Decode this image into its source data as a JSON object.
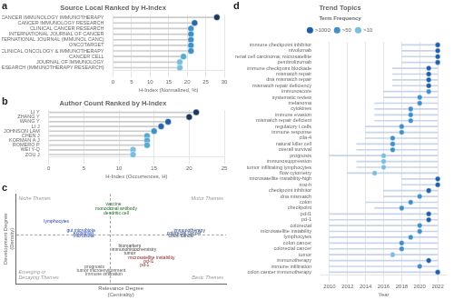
{
  "chart_data": [
    {
      "panel_label": "a",
      "type": "lollipop",
      "orientation": "horizontal",
      "title": "Source Local Ranked by H-Index",
      "x_label": "H-Index (Normalized, %)",
      "categories": [
        "CANCER IMMUNOLOGY IMMUNOTHERAPY",
        "CANCER IMMUNOLOGY RESEARCH",
        "CLINICAL CANCER RESEARCH",
        "INTERNATIONAL JOURNAL OF CANCER",
        "INTERNATIONAL JOURNAL (IMMUNOL CANC)",
        "ONCOTARGET",
        "JOURNAL OF CLINICAL ONCOLOGY & IMMUNOTHERAPY",
        "CANCER CELL",
        "JOURNAL OF IMMUNOLOGY",
        "CANCER RESEARCH (IMMUNOTHERAPY RESEARCH)"
      ],
      "values": [
        28,
        22,
        21,
        21,
        21,
        21,
        21,
        19,
        18,
        18
      ],
      "colors": [
        "#1a3a5c",
        "#2868a8",
        "#4090c8",
        "#4090c8",
        "#4090c8",
        "#4090c8",
        "#4090c8",
        "#5aaad0",
        "#7bbce0",
        "#7bbce0"
      ],
      "xlim": [
        0,
        30
      ],
      "xticks": [
        0,
        5,
        10,
        15,
        20,
        25,
        30
      ],
      "grid": true
    },
    {
      "panel_label": "b",
      "type": "lollipop",
      "orientation": "horizontal",
      "title": "Author Count Ranked by H-Index",
      "x_label": "H-Index (Occurrences, H)",
      "categories": [
        "LI Y",
        "ZHANG Y",
        "WANG Y",
        "LI J",
        "JOHNSON LAM",
        "CHEN J",
        "KORMAN A J",
        "ROMERO P",
        "WEI Y-Q",
        "ZOU J"
      ],
      "values": [
        21,
        20,
        17,
        16,
        15,
        14,
        14,
        14,
        12,
        12
      ],
      "colors": [
        "#1a3a5c",
        "#1a3a5c",
        "#2060a0",
        "#2868a8",
        "#4090c8",
        "#5aaad0",
        "#5aaad0",
        "#5aaad0",
        "#7bbce0",
        "#7bbce0"
      ],
      "xlim": [
        0,
        25
      ],
      "xticks": [
        0,
        5,
        10,
        15,
        20,
        25
      ],
      "grid": true
    },
    {
      "panel_label": "c",
      "type": "scatter",
      "x_label": "Relevance Degree\n(Centrality)",
      "y_label": "Development Degree\n(Density)",
      "annotations": [
        "Niche Themes",
        "Motor Themes",
        "Emerging or\nDecaying Themes",
        "Basic Themes"
      ],
      "series": [
        {
          "color": "#226622",
          "labels": [
            "vaccine",
            "monoclonal antibody",
            "dendritic cell"
          ],
          "x": [
            0.02,
            0.04,
            0.04
          ],
          "y": [
            0.68,
            0.58,
            0.48
          ]
        },
        {
          "color": "#2244aa",
          "labels": [
            "lymphocytes",
            "gut microbiota",
            "exosomes",
            "microbiota"
          ],
          "x": [
            -0.4,
            -0.22,
            -0.2,
            -0.2
          ],
          "y": [
            0.3,
            0.1,
            0.04,
            -0.02
          ]
        },
        {
          "color": "#1a3a6a",
          "labels": [
            "immunotherapy",
            "colorectal cancer",
            "colon cancer"
          ],
          "x": [
            0.58,
            0.54,
            0.52
          ],
          "y": [
            0.1,
            0.04,
            -0.02
          ]
        },
        {
          "color": "#444444",
          "labels": [
            "biomarkers",
            "immunohistochemistry",
            "tumor"
          ],
          "x": [
            0.14,
            0.17,
            0.14
          ],
          "y": [
            -0.22,
            -0.3,
            -0.38
          ]
        },
        {
          "color": "#882222",
          "labels": [
            "microsatellite instability",
            "pd-l1",
            "pd-1"
          ],
          "x": [
            0.3,
            0.28,
            0.25
          ],
          "y": [
            -0.48,
            -0.57,
            -0.64
          ]
        },
        {
          "color": "#555555",
          "labels": [
            "prognosis",
            "tumor microenvironment",
            "immune infiltration"
          ],
          "x": [
            -0.12,
            -0.07,
            -0.05
          ],
          "y": [
            -0.68,
            -0.76,
            -0.84
          ]
        }
      ],
      "xlim": [
        -0.7,
        0.85
      ],
      "ylim": [
        -1.05,
        0.9
      ],
      "xticks": [
        0
      ],
      "yticks": [
        0
      ],
      "grid": true,
      "tick_labels": false
    },
    {
      "panel_label": "d",
      "type": "timeline",
      "orientation": "horizontal",
      "title": "Trend Topics",
      "x_label": "Year",
      "categories": [
        "immune checkpoint inhibitor",
        "nivolumab",
        "renal cell carcinoma; microsatellite",
        "pembrolizumab",
        "immune checkpoint blockade",
        "mismatch repair",
        "dna mismatch repair",
        "mismatch repair deficiency",
        "immunoscore",
        "systematic review",
        "melanoma",
        "cytokines",
        "immune evasion",
        "mismatch repair deficient",
        "regulatory t cells",
        "immune response",
        "ctla-4",
        "natural killer cell",
        "overall survival",
        "prognosis",
        "immunosuppression",
        "tumor infiltrating lymphocytes",
        "flow cytometry",
        "microsatellite instability-high",
        "msi-h",
        "checkpoint inhibitor",
        "dna mismatch",
        "colon",
        "checkpoint",
        "pd-l1",
        "pd-1",
        "colorectal",
        "microsatellite instability",
        "lymphocytes",
        "colon cancer",
        "colorectal cancer",
        "tumor",
        "immunotherapy",
        "immune infiltration",
        "colon cancer immunotherapy"
      ],
      "series": [
        {
          "type": "bar",
          "color": "#c8d4e8",
          "starts": [
            2018,
            2018,
            2018,
            2018,
            2017,
            2017,
            2017,
            2017,
            2016,
            2016,
            2015,
            2015,
            2015,
            2015,
            2014,
            2014,
            2014,
            2013,
            2013,
            2010,
            2013,
            2013,
            2012,
            2018,
            2018,
            2016,
            2016,
            2014,
            2015,
            2010,
            2010,
            2010,
            2010,
            2010,
            2010,
            2010,
            2010,
            2010,
            2010,
            2010
          ],
          "ends": [
            2022,
            2022,
            2022,
            2022,
            2022,
            2022,
            2022,
            2022,
            2022,
            2022,
            2022,
            2022,
            2022,
            2022,
            2022,
            2022,
            2022,
            2022,
            2022,
            2022,
            2022,
            2022,
            2022,
            2022,
            2022,
            2022,
            2022,
            2022,
            2022,
            2022,
            2022,
            2022,
            2022,
            2022,
            2022,
            2022,
            2022,
            2022,
            2022,
            2022
          ]
        },
        {
          "type": "scatter",
          "values": [
            2022,
            2022,
            2022,
            2022,
            2021,
            2021,
            2021,
            2021,
            2021,
            2020,
            2020,
            2019,
            2019,
            2019,
            2018,
            2018,
            2017,
            2017,
            2017,
            2016,
            2016,
            2016,
            2015,
            2022,
            2022,
            2021,
            2020,
            2019,
            2018,
            2021,
            2021,
            2020,
            2020,
            2019,
            2018,
            2018,
            2017,
            2021,
            2020,
            2022
          ],
          "colors": [
            "#2060a8",
            "#2060a8",
            "#2060a8",
            "#2060a8",
            "#2060a8",
            "#2060a8",
            "#2060a8",
            "#2060a8",
            "#4090c8",
            "#4090c8",
            "#4090c8",
            "#4090c8",
            "#4090c8",
            "#4090c8",
            "#4090c8",
            "#4090c8",
            "#4090c8",
            "#4090c8",
            "#4090c8",
            "#7bbce0",
            "#7bbce0",
            "#7bbce0",
            "#7bbce0",
            "#2060a8",
            "#2060a8",
            "#2060a8",
            "#4090c8",
            "#4090c8",
            "#4090c8",
            "#2060a8",
            "#2060a8",
            "#4090c8",
            "#4090c8",
            "#4090c8",
            "#4090c8",
            "#4090c8",
            "#7bbce0",
            "#2060a8",
            "#4090c8",
            "#2060a8"
          ]
        }
      ],
      "xlim": [
        2009,
        2023
      ],
      "xticks": [
        2010,
        2012,
        2014,
        2016,
        2018,
        2020,
        2022
      ],
      "grid": true,
      "legend": "top",
      "legend_title": "Term Frequency",
      "legend_items": [
        {
          "name": ">1000",
          "color": "#2060a8"
        },
        {
          "name": ">50",
          "color": "#4090c8"
        },
        {
          "name": ">10",
          "color": "#7bbce0"
        }
      ]
    }
  ]
}
